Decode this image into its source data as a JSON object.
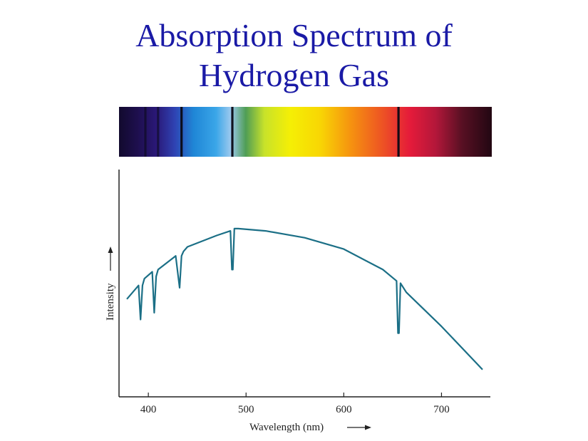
{
  "title_lines": [
    "Absorption Spectrum of",
    "Hydrogen Gas"
  ],
  "colors": {
    "title": "#1a1aa6",
    "curve": "#1b6f86",
    "axis": "#222222"
  },
  "spectrum_bar": {
    "absorption_lines_nm": [
      397,
      410,
      434,
      486,
      656
    ]
  },
  "chart_data": {
    "type": "line",
    "title": "Absorption Spectrum of Hydrogen Gas",
    "xlabel": "Wavelength (nm)",
    "ylabel": "Intensity",
    "xlim": [
      370,
      750
    ],
    "ylim": [
      0,
      1
    ],
    "xticks": [
      400,
      500,
      600,
      700
    ],
    "grid": false,
    "series": [
      {
        "x": [
          378,
          390,
          392,
          394,
          396,
          404,
          406,
          408,
          410,
          428,
          432,
          434,
          436,
          440,
          470,
          484,
          485.5,
          486.5,
          488,
          492,
          520,
          560,
          600,
          640,
          654,
          655.5,
          656.5,
          658,
          664,
          700,
          742
        ],
        "y": [
          0.43,
          0.49,
          0.34,
          0.49,
          0.52,
          0.55,
          0.37,
          0.53,
          0.56,
          0.62,
          0.48,
          0.62,
          0.64,
          0.66,
          0.71,
          0.73,
          0.56,
          0.56,
          0.74,
          0.74,
          0.73,
          0.7,
          0.65,
          0.56,
          0.51,
          0.28,
          0.28,
          0.5,
          0.46,
          0.31,
          0.12
        ]
      }
    ]
  }
}
